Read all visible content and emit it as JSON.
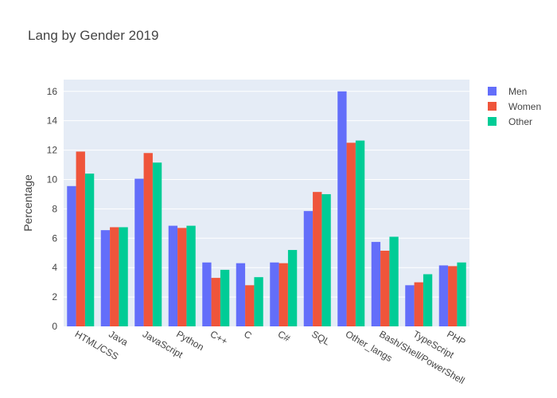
{
  "chart_data": {
    "type": "bar",
    "title": "Lang by Gender 2019",
    "xlabel": "",
    "ylabel": "Percentage",
    "ylim": [
      0,
      16.8
    ],
    "yticks": [
      0,
      2,
      4,
      6,
      8,
      10,
      12,
      14,
      16
    ],
    "grid": true,
    "legend_position": "top-right",
    "categories": [
      "HTML/CSS",
      "Java",
      "JavaScript",
      "Python",
      "C++",
      "C",
      "C#",
      "SQL",
      "Other_langs",
      "Bash/Shell/PowerShell",
      "TypeScript",
      "PHP"
    ],
    "series": [
      {
        "name": "Men",
        "color": "#636efa",
        "values": [
          9.55,
          6.55,
          10.05,
          6.85,
          4.35,
          4.3,
          4.35,
          7.85,
          16.0,
          5.75,
          2.8,
          4.15
        ]
      },
      {
        "name": "Women",
        "color": "#ef553b",
        "values": [
          11.9,
          6.75,
          11.8,
          6.7,
          3.3,
          2.8,
          4.3,
          9.15,
          12.5,
          5.15,
          3.0,
          4.1
        ]
      },
      {
        "name": "Other",
        "color": "#00cc96",
        "values": [
          10.4,
          6.75,
          11.15,
          6.85,
          3.85,
          3.35,
          5.2,
          9.0,
          12.65,
          6.1,
          3.55,
          4.35
        ]
      }
    ]
  }
}
